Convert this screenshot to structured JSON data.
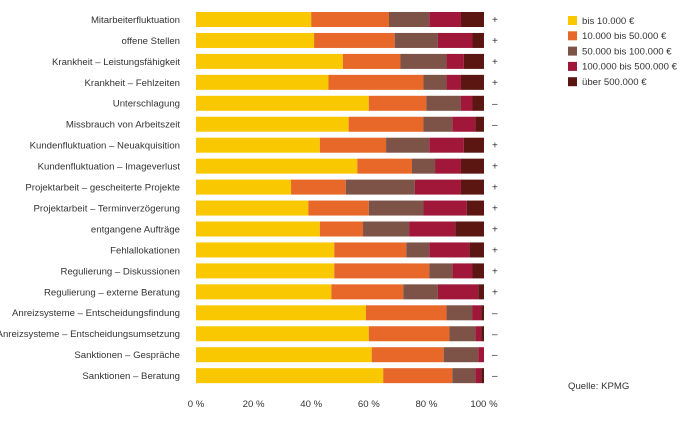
{
  "chart_data": {
    "type": "bar",
    "orientation": "horizontal",
    "stacked": true,
    "normalized_percent": true,
    "categories": [
      "Mitarbeiterfluktuation",
      "offene Stellen",
      "Krankheit – Leistungsfähigkeit",
      "Krankheit – Fehlzeiten",
      "Unterschlagung",
      "Missbrauch von Arbeitszeit",
      "Kundenfluktuation – Neuakquisition",
      "Kundenfluktuation – Imageverlust",
      "Projektarbeit – gescheiterte Projekte",
      "Projektarbeit – Terminverzögerung",
      "entgangene Aufträge",
      "Fehlallokationen",
      "Regulierung – Diskussionen",
      "Regulierung – externe Beratung",
      "Anreizsysteme – Entscheidungsfindung",
      "Anreizsysteme – Entscheidungsumsetzung",
      "Sanktionen – Gespräche",
      "Sanktionen – Beratung"
    ],
    "series": [
      {
        "name": "bis 10.000 €",
        "color": "#F9C800",
        "values": [
          40,
          41,
          51,
          46,
          60,
          53,
          43,
          56,
          33,
          39,
          43,
          48,
          48,
          47,
          59,
          60,
          61,
          65
        ]
      },
      {
        "name": "10.000 bis 50.000 €",
        "color": "#E8682A",
        "values": [
          27,
          28,
          20,
          33,
          20,
          26,
          23,
          19,
          19,
          21,
          15,
          25,
          33,
          25,
          28,
          28,
          25,
          24
        ]
      },
      {
        "name": "50.000 bis 100.000 €",
        "color": "#7D5247",
        "values": [
          14,
          15,
          16,
          8,
          12,
          10,
          15,
          8,
          24,
          19,
          16,
          8,
          8,
          12,
          9,
          9,
          12,
          8
        ]
      },
      {
        "name": "100.000 bis 500.000 €",
        "color": "#A0173A",
        "values": [
          11,
          12,
          6,
          5,
          4,
          8,
          12,
          9,
          16,
          15,
          16,
          14,
          7,
          14,
          3,
          2,
          2,
          2
        ]
      },
      {
        "name": "über 500.000 €",
        "color": "#5B1611",
        "values": [
          8,
          4,
          7,
          8,
          4,
          3,
          7,
          8,
          8,
          6,
          10,
          5,
          4,
          2,
          1,
          1,
          0,
          1
        ]
      }
    ],
    "signs": [
      "+",
      "+",
      "+",
      "+",
      "–",
      "–",
      "+",
      "+",
      "+",
      "+",
      "+",
      "+",
      "+",
      "+",
      "–",
      "–",
      "–",
      "–"
    ],
    "xaxis": {
      "ticks": [
        0,
        20,
        40,
        60,
        80,
        100
      ],
      "tick_suffix": " %",
      "xlim": [
        0,
        100
      ]
    },
    "source": "Quelle: KPMG",
    "legend_position": "top-right"
  }
}
